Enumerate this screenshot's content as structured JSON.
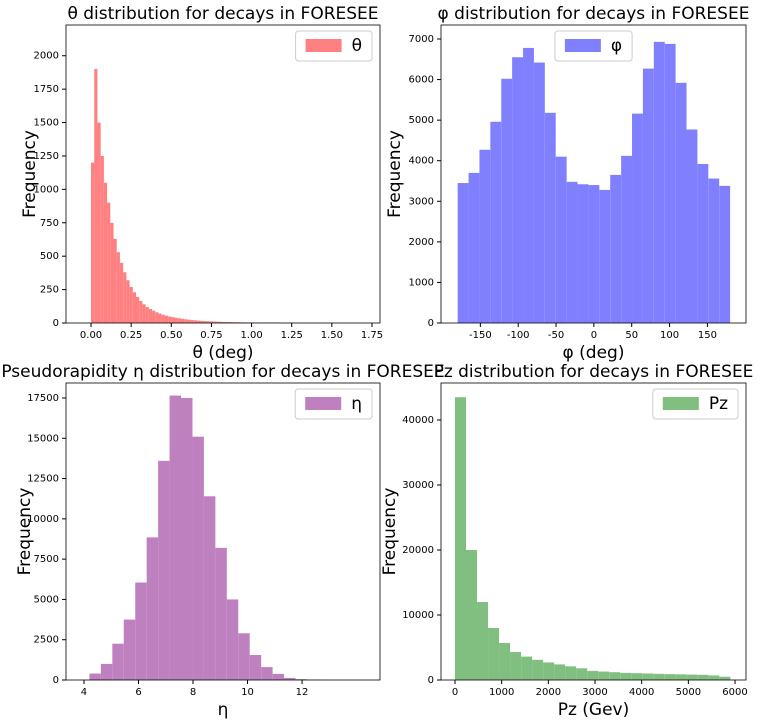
{
  "chart_data": [
    {
      "type": "histogram",
      "title": "θ distribution for decays  in FORESEE",
      "xlabel": "θ (deg)",
      "ylabel": "Frequency",
      "legend": "upper right",
      "bins": [
        0,
        0.02,
        0.04,
        0.06,
        0.08,
        0.1,
        0.12,
        0.14,
        0.16,
        0.18,
        0.2,
        0.22,
        0.24,
        0.26,
        0.28,
        0.3,
        0.32,
        0.34,
        0.36,
        0.38,
        0.4,
        0.42,
        0.44,
        0.46,
        0.48,
        0.5,
        0.52,
        0.54,
        0.56,
        0.58,
        0.6,
        0.62,
        0.64,
        0.66,
        0.68,
        0.7,
        0.72,
        0.74,
        0.76,
        0.78,
        0.8,
        0.82,
        0.84,
        0.86,
        0.88,
        0.9,
        0.92,
        0.94,
        0.96,
        0.98,
        1,
        1.02,
        1.04,
        1.06,
        1.08,
        1.1,
        1.12,
        1.14,
        1.16,
        1.18,
        1.2,
        1.22,
        1.24,
        1.26,
        1.28,
        1.3,
        1.32,
        1.34,
        1.36,
        1.38,
        1.4
      ],
      "series": [
        {
          "name": "θ",
          "color": "#ff8080",
          "values": [
            1200,
            1900,
            1500,
            1250,
            1050,
            900,
            750,
            630,
            530,
            450,
            380,
            320,
            270,
            230,
            195,
            165,
            140,
            120,
            105,
            92,
            80,
            70,
            62,
            55,
            49,
            44,
            39,
            35,
            31,
            28,
            25,
            22,
            20,
            18,
            16,
            14,
            13,
            12,
            11,
            10,
            9,
            8,
            7,
            7,
            6,
            6,
            5,
            5,
            4,
            4,
            4,
            3,
            3,
            3,
            2,
            2,
            2,
            2,
            2,
            1,
            1,
            1,
            1,
            1,
            1,
            1,
            1,
            1,
            1,
            1
          ]
        }
      ],
      "xlim": [
        -0.156,
        1.8
      ],
      "ylim": [
        0,
        2230
      ],
      "xticks": [
        {
          "value": 0,
          "label": "0.00"
        },
        {
          "value": 0.25,
          "label": "0.25"
        },
        {
          "value": 0.5,
          "label": "0.50"
        },
        {
          "value": 0.75,
          "label": "0.75"
        },
        {
          "value": 1,
          "label": "1.00"
        },
        {
          "value": 1.25,
          "label": "1.25"
        },
        {
          "value": 1.5,
          "label": "1.50"
        },
        {
          "value": 1.75,
          "label": "1.75"
        }
      ],
      "yticks": [
        0,
        250,
        500,
        750,
        1000,
        1250,
        1500,
        1750,
        2000
      ]
    },
    {
      "type": "histogram",
      "title": "φ distribution for decays  in FORESEE",
      "xlabel": "φ (deg)",
      "ylabel": "Frequency",
      "legend": "upper center",
      "bins": [
        -180,
        -165.6,
        -151.2,
        -136.8,
        -122.4,
        -108,
        -93.6,
        -79.2,
        -64.8,
        -50.4,
        -36,
        -21.6,
        -7.2,
        7.2,
        21.6,
        36,
        50.4,
        64.8,
        79.2,
        93.6,
        108,
        122.4,
        136.8,
        151.2,
        165.6,
        180
      ],
      "series": [
        {
          "name": "φ",
          "color": "#8080ff",
          "values": [
            3450,
            3700,
            4270,
            4960,
            6020,
            6550,
            6780,
            6420,
            5180,
            4100,
            3480,
            3420,
            3400,
            3280,
            3650,
            4120,
            5160,
            6270,
            6930,
            6880,
            5920,
            4770,
            3920,
            3560,
            3380
          ]
        }
      ],
      "xlim": [
        -202,
        201
      ],
      "ylim": [
        0,
        7345
      ],
      "xticks": [
        -150,
        -100,
        -50,
        0,
        50,
        100,
        150
      ],
      "yticks": [
        0,
        1000,
        2000,
        3000,
        4000,
        5000,
        6000,
        7000
      ]
    },
    {
      "type": "histogram",
      "title": "Pseudorapidity η distribution for decays in FORESEE",
      "xlabel": "η",
      "ylabel": "Frequency",
      "legend": "upper right",
      "bins": [
        4.2,
        4.62,
        5.04,
        5.46,
        5.88,
        6.3,
        6.72,
        7.14,
        7.56,
        7.98,
        8.4,
        8.82,
        9.24,
        9.66,
        10.08,
        10.5,
        10.92,
        11.34,
        11.76,
        12.18,
        12.6,
        13.02,
        13.44
      ],
      "series": [
        {
          "name": "η",
          "color": "#bf80bf",
          "values": [
            400,
            1000,
            2250,
            3750,
            6050,
            8850,
            13600,
            17650,
            17500,
            15100,
            11400,
            8200,
            5000,
            2900,
            1550,
            800,
            380,
            130,
            50,
            15,
            5,
            2
          ]
        }
      ],
      "xlim": [
        3.34,
        14.86
      ],
      "ylim": [
        0,
        18430
      ],
      "xticks": [
        4,
        6,
        8,
        10,
        12
      ],
      "yticks": [
        0,
        2500,
        5000,
        7500,
        10000,
        12500,
        15000,
        17500
      ]
    },
    {
      "type": "histogram",
      "title": "Pz distribution for decays in FORESEE",
      "xlabel": "Pz (Gev)",
      "ylabel": "Frequency",
      "legend": "upper right",
      "bins": [
        0,
        236,
        472,
        708,
        944,
        1180,
        1416,
        1652,
        1888,
        2124,
        2360,
        2596,
        2832,
        3068,
        3304,
        3540,
        3776,
        4012,
        4248,
        4484,
        4720,
        4956,
        5192,
        5428,
        5664,
        5900
      ],
      "series": [
        {
          "name": "Pz",
          "color": "#80bf80",
          "values": [
            43500,
            20000,
            12000,
            8000,
            5700,
            4300,
            3600,
            3100,
            2700,
            2400,
            2100,
            1800,
            1400,
            1300,
            1200,
            1100,
            1050,
            1000,
            950,
            900,
            870,
            830,
            800,
            700,
            500
          ]
        }
      ],
      "xlim": [
        -300,
        6235
      ],
      "ylim": [
        0,
        45690
      ],
      "xticks": [
        0,
        1000,
        2000,
        3000,
        4000,
        5000,
        6000
      ],
      "yticks": [
        0,
        10000,
        20000,
        30000,
        40000
      ]
    }
  ]
}
